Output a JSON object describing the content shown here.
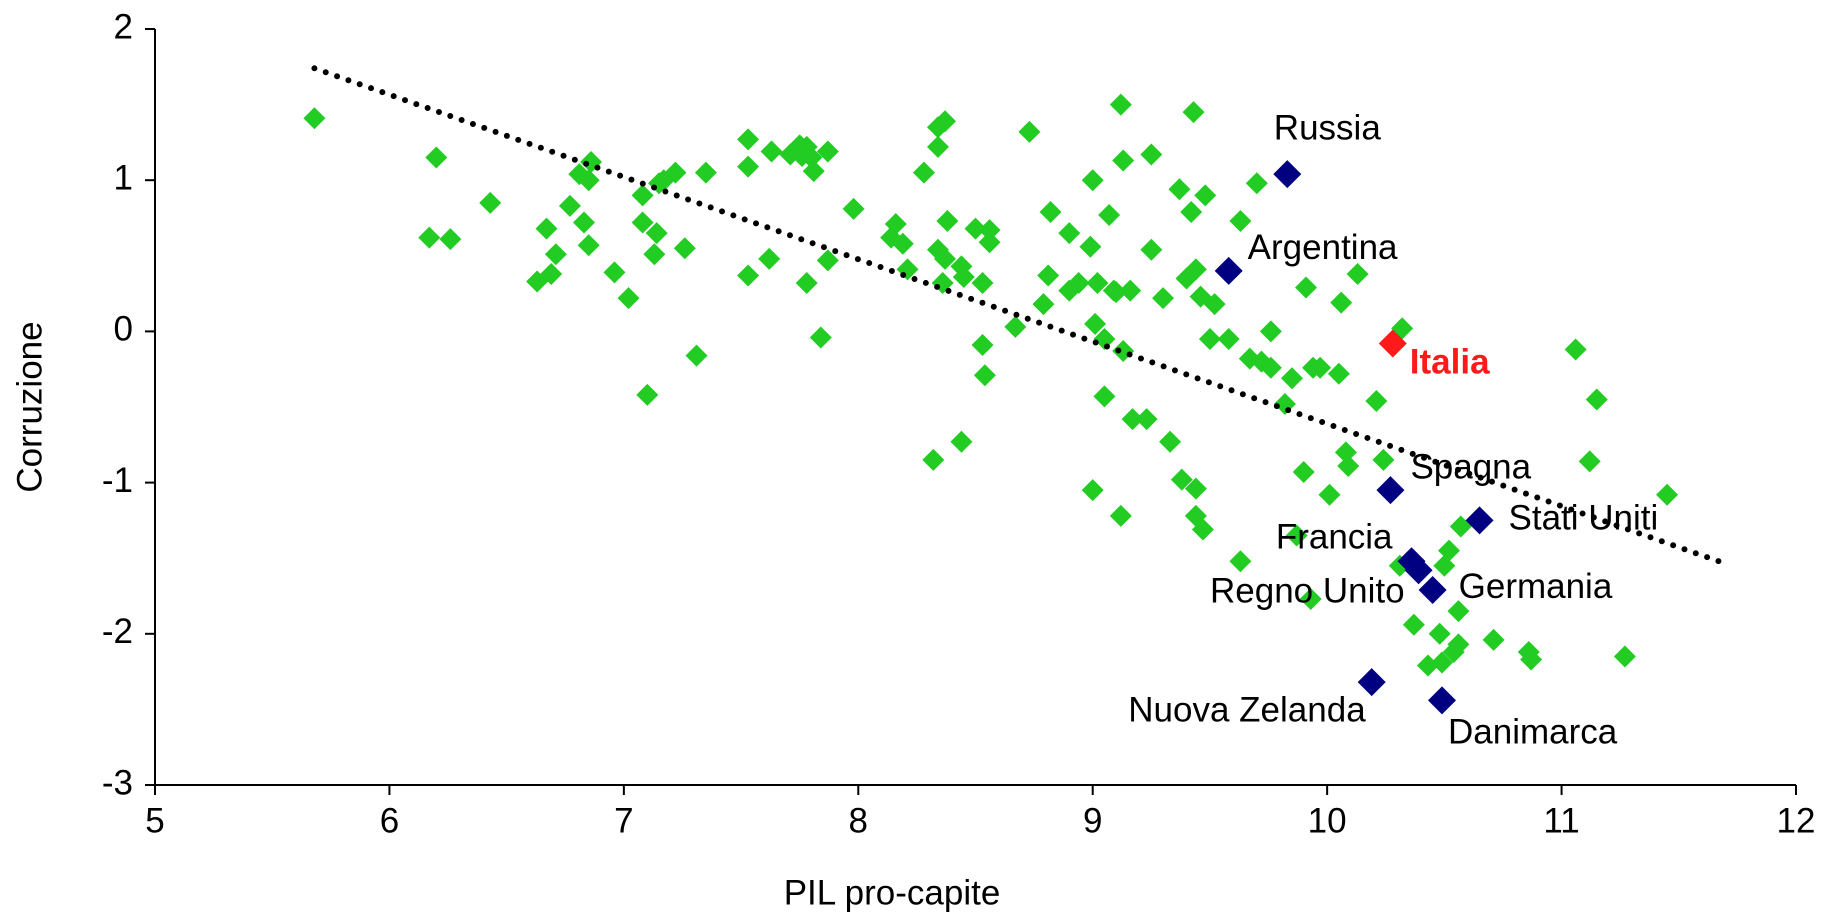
{
  "chart_data": {
    "type": "scatter",
    "xlabel": "PIL pro-capite",
    "ylabel": "Corruzione",
    "xlim": [
      5,
      12
    ],
    "xticks": [
      5,
      6,
      7,
      8,
      9,
      10,
      11,
      12
    ],
    "ylim": [
      -3,
      2
    ],
    "yticks": [
      -3,
      -2,
      -1,
      0,
      1,
      2
    ],
    "grid": false,
    "series": [
      {
        "color": "#22cc22",
        "x": [
          5.68,
          6.2,
          6.17,
          6.26,
          6.43,
          6.63,
          6.67,
          6.69,
          6.71,
          6.77,
          6.81,
          6.83,
          6.85,
          6.86,
          6.85,
          6.96,
          7.02,
          7.08,
          7.08,
          7.1,
          7.13,
          7.14,
          7.15,
          7.17,
          7.22,
          7.26,
          7.31,
          7.35,
          7.53,
          7.53,
          7.53,
          7.62,
          7.63,
          7.71,
          7.75,
          7.76,
          7.78,
          7.8,
          7.81,
          7.87,
          7.78,
          7.87,
          7.84,
          7.98,
          8.14,
          8.16,
          8.19,
          8.21,
          8.28,
          8.32,
          8.34,
          8.34,
          8.37,
          8.34,
          8.36,
          8.37,
          8.38,
          8.44,
          8.44,
          8.45,
          8.5,
          8.53,
          8.53,
          8.54,
          8.56,
          8.56,
          8.67,
          8.73,
          8.79,
          8.81,
          8.82,
          8.9,
          8.9,
          8.94,
          9.0,
          8.99,
          9.0,
          9.01,
          9.02,
          9.05,
          9.05,
          9.07,
          9.09,
          9.1,
          9.12,
          9.12,
          9.13,
          9.13,
          9.17,
          9.16,
          9.23,
          9.25,
          9.25,
          9.3,
          9.33,
          9.37,
          9.38,
          9.4,
          9.42,
          9.44,
          9.44,
          9.44,
          9.43,
          9.46,
          9.47,
          9.48,
          9.5,
          9.52,
          9.58,
          9.63,
          9.63,
          9.67,
          9.7,
          9.72,
          9.76,
          9.76,
          9.82,
          9.85,
          9.87,
          9.9,
          9.91,
          9.93,
          9.94,
          9.97,
          10.01,
          10.05,
          10.06,
          10.08,
          10.09,
          10.13,
          10.21,
          10.24,
          10.32,
          10.31,
          10.37,
          10.43,
          10.48,
          10.49,
          10.5,
          10.52,
          10.54,
          10.56,
          10.57,
          10.56,
          10.71,
          10.86,
          10.87,
          11.06,
          11.12,
          11.15,
          11.27,
          11.45
        ],
        "y": [
          1.41,
          1.15,
          0.62,
          0.61,
          0.85,
          0.33,
          0.68,
          0.38,
          0.51,
          0.83,
          1.04,
          0.72,
          0.57,
          1.12,
          1.0,
          0.39,
          0.22,
          0.72,
          0.9,
          -0.42,
          0.51,
          0.65,
          0.98,
          1.0,
          1.05,
          0.55,
          -0.16,
          1.05,
          1.27,
          1.09,
          0.37,
          0.48,
          1.19,
          1.17,
          1.23,
          1.16,
          1.22,
          1.15,
          1.06,
          1.19,
          0.32,
          0.47,
          -0.04,
          0.81,
          0.62,
          0.71,
          0.58,
          0.41,
          1.05,
          -0.85,
          1.22,
          1.35,
          1.39,
          0.54,
          0.32,
          0.48,
          0.73,
          -0.73,
          0.43,
          0.36,
          0.68,
          0.32,
          -0.09,
          -0.29,
          0.67,
          0.59,
          0.03,
          1.32,
          0.18,
          0.37,
          0.79,
          0.65,
          0.27,
          0.32,
          -1.05,
          0.56,
          1.0,
          0.05,
          0.32,
          -0.43,
          -0.05,
          0.77,
          0.27,
          0.26,
          1.5,
          -1.22,
          1.13,
          -0.13,
          -0.58,
          0.27,
          -0.58,
          1.17,
          0.54,
          0.22,
          -0.73,
          0.94,
          -0.98,
          0.35,
          0.79,
          -1.22,
          -1.04,
          0.41,
          1.45,
          0.23,
          -1.31,
          0.9,
          -0.05,
          0.18,
          -0.05,
          0.73,
          -1.52,
          -0.18,
          0.98,
          -0.2,
          0.0,
          -0.24,
          -0.48,
          -0.31,
          -1.35,
          -0.93,
          0.29,
          -1.77,
          -0.24,
          -0.24,
          -1.08,
          -0.28,
          0.19,
          -0.8,
          -0.89,
          0.38,
          -0.46,
          -0.85,
          0.02,
          -1.55,
          -1.94,
          -2.21,
          -2.0,
          -2.19,
          -1.55,
          -1.45,
          -2.12,
          -1.85,
          -1.29,
          -2.07,
          -2.04,
          -2.12,
          -2.17,
          -0.12,
          -0.86,
          -0.45,
          -2.15,
          -1.08
        ]
      }
    ],
    "highlighted": [
      {
        "label": "Russia",
        "x": 9.83,
        "y": 1.04,
        "color": "#000080"
      },
      {
        "label": "Argentina",
        "x": 9.58,
        "y": 0.4,
        "color": "#000080"
      },
      {
        "label": "Italia",
        "x": 10.28,
        "y": -0.08,
        "color": "#ff1a1a",
        "label_color": "#ff1a1a"
      },
      {
        "label": "Spagna",
        "x": 10.27,
        "y": -1.05,
        "color": "#000080"
      },
      {
        "label": "Stati Uniti",
        "x": 10.65,
        "y": -1.25,
        "color": "#000080"
      },
      {
        "label": "Francia",
        "x": 10.36,
        "y": -1.52,
        "color": "#000080"
      },
      {
        "label": "Regno Unito",
        "x": 10.39,
        "y": -1.58,
        "color": "#000080"
      },
      {
        "label": "Germania",
        "x": 10.45,
        "y": -1.71,
        "color": "#000080"
      },
      {
        "label": "Nuova Zelanda",
        "x": 10.19,
        "y": -2.32,
        "color": "#000080"
      },
      {
        "label": "Danimarca",
        "x": 10.49,
        "y": -2.44,
        "color": "#000080"
      }
    ],
    "trendline": {
      "x": [
        5.68,
        11.67
      ],
      "y": [
        1.74,
        -1.52
      ],
      "color": "#000000"
    }
  }
}
